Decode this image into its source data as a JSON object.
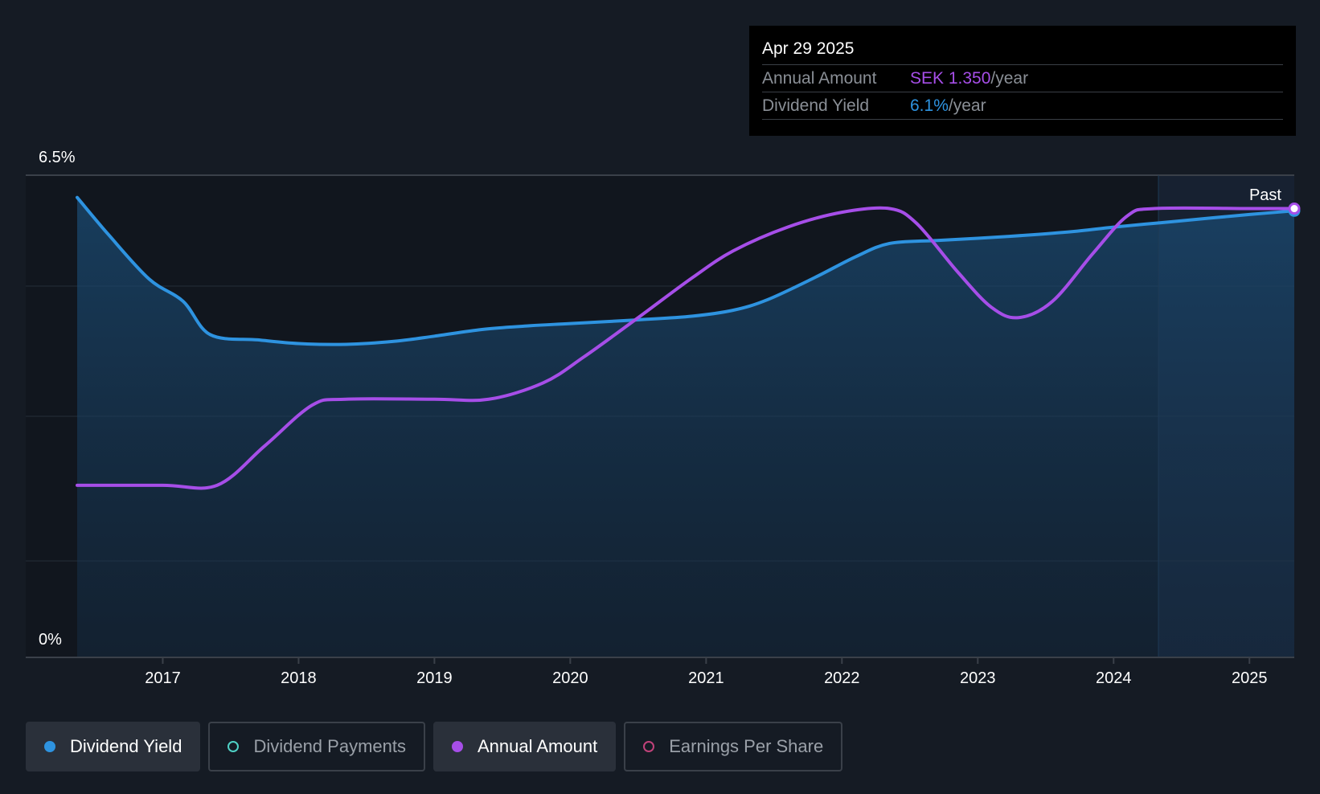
{
  "tooltip": {
    "date": "Apr 29 2025",
    "rows": [
      {
        "label": "Annual Amount",
        "value": "SEK 1.350",
        "unit": "/year",
        "color": "#a64ee8"
      },
      {
        "label": "Dividend Yield",
        "value": "6.1%",
        "unit": "/year",
        "color": "#2e93e0"
      }
    ]
  },
  "past_label": "Past",
  "legend": [
    {
      "label": "Dividend Yield",
      "color": "#2e93e0",
      "active": true,
      "icon": "filled-circle-icon"
    },
    {
      "label": "Dividend Payments",
      "color": "#4fd1c5",
      "active": false,
      "icon": "hollow-circle-icon"
    },
    {
      "label": "Annual Amount",
      "color": "#a64ee8",
      "active": true,
      "icon": "filled-circle-icon"
    },
    {
      "label": "Earnings Per Share",
      "color": "#c0427a",
      "active": false,
      "icon": "hollow-circle-icon"
    }
  ],
  "chart_data": {
    "type": "line",
    "x_axis": {
      "ticks": [
        "2017",
        "2018",
        "2019",
        "2020",
        "2021",
        "2022",
        "2023",
        "2024",
        "2025"
      ],
      "range": [
        2016.37,
        2025.33
      ]
    },
    "y_axis": {
      "ticks": [
        "0%",
        "6.5%"
      ],
      "range": [
        0,
        6.5
      ]
    },
    "grid": true,
    "past_region_start": 2024.33,
    "series": [
      {
        "name": "Dividend Yield",
        "color": "#2e93e0",
        "filled": true,
        "points": [
          [
            2016.37,
            6.2
          ],
          [
            2016.6,
            5.7
          ],
          [
            2016.9,
            5.1
          ],
          [
            2017.15,
            4.8
          ],
          [
            2017.35,
            4.35
          ],
          [
            2017.7,
            4.28
          ],
          [
            2018.0,
            4.23
          ],
          [
            2018.35,
            4.22
          ],
          [
            2018.7,
            4.26
          ],
          [
            2019.0,
            4.33
          ],
          [
            2019.35,
            4.42
          ],
          [
            2019.7,
            4.47
          ],
          [
            2020.0,
            4.5
          ],
          [
            2020.5,
            4.55
          ],
          [
            2020.9,
            4.6
          ],
          [
            2021.2,
            4.68
          ],
          [
            2021.45,
            4.82
          ],
          [
            2021.8,
            5.12
          ],
          [
            2022.1,
            5.4
          ],
          [
            2022.35,
            5.58
          ],
          [
            2022.7,
            5.62
          ],
          [
            2023.0,
            5.65
          ],
          [
            2023.35,
            5.69
          ],
          [
            2023.7,
            5.74
          ],
          [
            2024.0,
            5.8
          ],
          [
            2024.35,
            5.86
          ],
          [
            2024.7,
            5.92
          ],
          [
            2025.0,
            5.97
          ],
          [
            2025.33,
            6.02
          ]
        ]
      },
      {
        "name": "Annual Amount",
        "color": "#a64ee8",
        "filled": false,
        "points": [
          [
            2016.37,
            2.32
          ],
          [
            2017.0,
            2.32
          ],
          [
            2017.4,
            2.32
          ],
          [
            2017.75,
            2.85
          ],
          [
            2018.1,
            3.4
          ],
          [
            2018.35,
            3.48
          ],
          [
            2019.0,
            3.48
          ],
          [
            2019.4,
            3.48
          ],
          [
            2019.8,
            3.7
          ],
          [
            2020.1,
            4.05
          ],
          [
            2020.5,
            4.58
          ],
          [
            2020.9,
            5.12
          ],
          [
            2021.2,
            5.48
          ],
          [
            2021.6,
            5.8
          ],
          [
            2022.0,
            6.0
          ],
          [
            2022.35,
            6.05
          ],
          [
            2022.55,
            5.85
          ],
          [
            2022.85,
            5.2
          ],
          [
            2023.1,
            4.72
          ],
          [
            2023.3,
            4.58
          ],
          [
            2023.55,
            4.8
          ],
          [
            2023.85,
            5.45
          ],
          [
            2024.1,
            5.95
          ],
          [
            2024.3,
            6.05
          ],
          [
            2025.0,
            6.05
          ],
          [
            2025.33,
            6.05
          ]
        ]
      }
    ]
  }
}
